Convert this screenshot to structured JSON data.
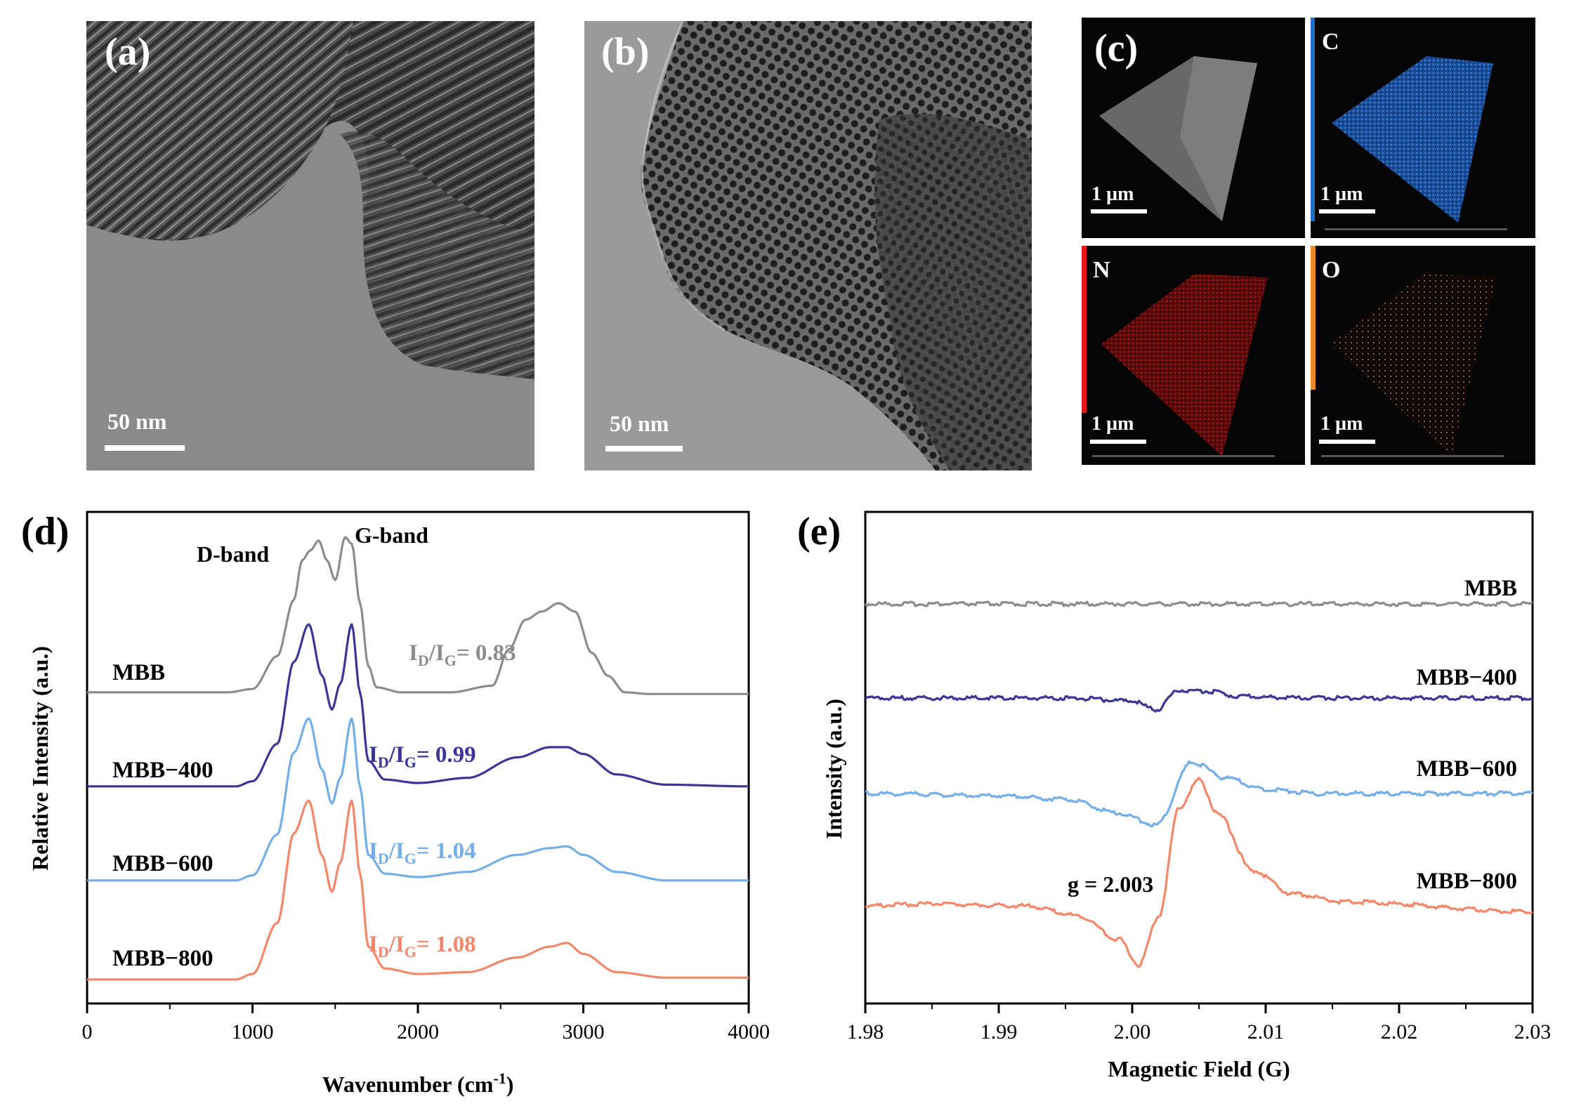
{
  "panels": {
    "a": {
      "label": "(a)",
      "scale": "50 nm"
    },
    "b": {
      "label": "(b)",
      "scale": "50 nm"
    },
    "c": {
      "label": "(c)",
      "maps": [
        {
          "element": "",
          "scale": "1 µm",
          "color": "#bfbfbf"
        },
        {
          "element": "C",
          "scale": "1 µm",
          "color": "#1f6fd1"
        },
        {
          "element": "N",
          "scale": "1 µm",
          "color": "#e21a1a"
        },
        {
          "element": "O",
          "scale": "1 µm",
          "color": "#f08a1c"
        }
      ]
    },
    "d": {
      "label": "(d)"
    },
    "e": {
      "label": "(e)"
    }
  },
  "chart_data": [
    {
      "panel": "d",
      "type": "line",
      "xlabel": "Wavenumber (cm",
      "xlabel_sup": "-1",
      "xlabel_end": ")",
      "ylabel": "Relative Intensity (a.u.)",
      "xlim": [
        0,
        4000
      ],
      "xticks": [
        0,
        1000,
        2000,
        3000,
        4000
      ],
      "tick_labels": [
        "0",
        "1000",
        "2000",
        "3000",
        "4000"
      ],
      "annotations": [
        "D-band",
        "G-band"
      ],
      "ratio_prefix": "I",
      "ratio_sub_d": "D",
      "ratio_sub_g": "G",
      "series": [
        {
          "name": "MBB",
          "color": "#8c8c8c",
          "ratio": "= 0.83",
          "x": [
            0,
            850,
            1000,
            1150,
            1250,
            1300,
            1350,
            1400,
            1450,
            1500,
            1560,
            1600,
            1650,
            1700,
            1750,
            1900,
            2200,
            2450,
            2550,
            2650,
            2750,
            2850,
            2950,
            3050,
            3150,
            3250,
            3400,
            4000
          ],
          "y": [
            0.06,
            0.06,
            0.08,
            0.28,
            0.62,
            0.86,
            0.92,
            0.98,
            0.86,
            0.74,
            1.0,
            0.96,
            0.6,
            0.22,
            0.09,
            0.06,
            0.06,
            0.1,
            0.32,
            0.5,
            0.55,
            0.6,
            0.55,
            0.3,
            0.16,
            0.06,
            0.05,
            0.05
          ]
        },
        {
          "name": "MBB−400",
          "color": "#3a3596",
          "ratio": "= 0.99",
          "x": [
            0,
            900,
            1000,
            1150,
            1250,
            1340,
            1420,
            1480,
            1530,
            1600,
            1650,
            1700,
            1800,
            2000,
            2300,
            2600,
            2800,
            2900,
            3000,
            3200,
            3500,
            4000
          ],
          "y": [
            0.05,
            0.05,
            0.08,
            0.3,
            0.78,
            1.0,
            0.7,
            0.5,
            0.65,
            1.0,
            0.6,
            0.2,
            0.09,
            0.07,
            0.1,
            0.22,
            0.28,
            0.28,
            0.24,
            0.12,
            0.06,
            0.05
          ]
        },
        {
          "name": "MBB−600",
          "color": "#73aee8",
          "ratio": "= 1.04",
          "x": [
            0,
            900,
            1000,
            1150,
            1250,
            1340,
            1420,
            1480,
            1530,
            1600,
            1650,
            1700,
            1800,
            2000,
            2300,
            2600,
            2800,
            2900,
            3000,
            3200,
            3500,
            4000
          ],
          "y": [
            0.05,
            0.05,
            0.08,
            0.32,
            0.8,
            1.0,
            0.7,
            0.5,
            0.65,
            1.0,
            0.6,
            0.2,
            0.09,
            0.07,
            0.1,
            0.2,
            0.24,
            0.25,
            0.2,
            0.1,
            0.05,
            0.05
          ]
        },
        {
          "name": "MBB−800",
          "color": "#f4876a",
          "ratio": "= 1.08",
          "x": [
            0,
            900,
            1000,
            1150,
            1250,
            1340,
            1420,
            1480,
            1530,
            1600,
            1650,
            1700,
            1800,
            2000,
            2300,
            2600,
            2800,
            2900,
            3000,
            3200,
            3500,
            4000
          ],
          "y": [
            0.02,
            0.02,
            0.05,
            0.33,
            0.82,
            1.0,
            0.7,
            0.5,
            0.66,
            1.0,
            0.6,
            0.2,
            0.08,
            0.05,
            0.06,
            0.14,
            0.2,
            0.22,
            0.16,
            0.06,
            0.03,
            0.03
          ]
        }
      ]
    },
    {
      "panel": "e",
      "type": "line",
      "xlabel": "Magnetic Field (G)",
      "ylabel": "Intensity (a.u.)",
      "xlim": [
        1.98,
        2.03
      ],
      "xticks": [
        1.98,
        1.99,
        2.0,
        2.01,
        2.02,
        2.03
      ],
      "tick_labels": [
        "1.98",
        "1.99",
        "2.00",
        "2.01",
        "2.02",
        "2.03"
      ],
      "annotations": [
        "g = 2.003"
      ],
      "series": [
        {
          "name": "MBB",
          "color": "#8c8c8c",
          "x": [
            1.98,
            2.03
          ],
          "y": [
            0.0,
            0.0
          ]
        },
        {
          "name": "MBB−400",
          "color": "#3a3596",
          "x": [
            1.98,
            1.995,
            2.0,
            2.0018,
            2.0035,
            2.0055,
            2.008,
            2.012,
            2.03
          ],
          "y": [
            0.0,
            0.0,
            -0.015,
            -0.06,
            0.04,
            0.035,
            0.01,
            0.0,
            0.0
          ]
        },
        {
          "name": "MBB−600",
          "color": "#73aee8",
          "x": [
            1.98,
            1.99,
            1.995,
            1.999,
            2.0018,
            2.0045,
            2.007,
            2.01,
            2.014,
            2.03
          ],
          "y": [
            0.0,
            -0.01,
            -0.03,
            -0.1,
            -0.16,
            0.16,
            0.08,
            0.02,
            0.0,
            0.0
          ]
        },
        {
          "name": "MBB−800",
          "color": "#f4876a",
          "x": [
            1.98,
            1.985,
            1.992,
            1.996,
            1.999,
            2.0005,
            2.002,
            2.0035,
            2.005,
            2.0065,
            2.009,
            2.012,
            2.016,
            2.03
          ],
          "y": [
            0.0,
            0.01,
            0.0,
            -0.05,
            -0.17,
            -0.3,
            -0.05,
            0.5,
            0.64,
            0.46,
            0.18,
            0.06,
            0.02,
            -0.03
          ]
        }
      ]
    }
  ]
}
